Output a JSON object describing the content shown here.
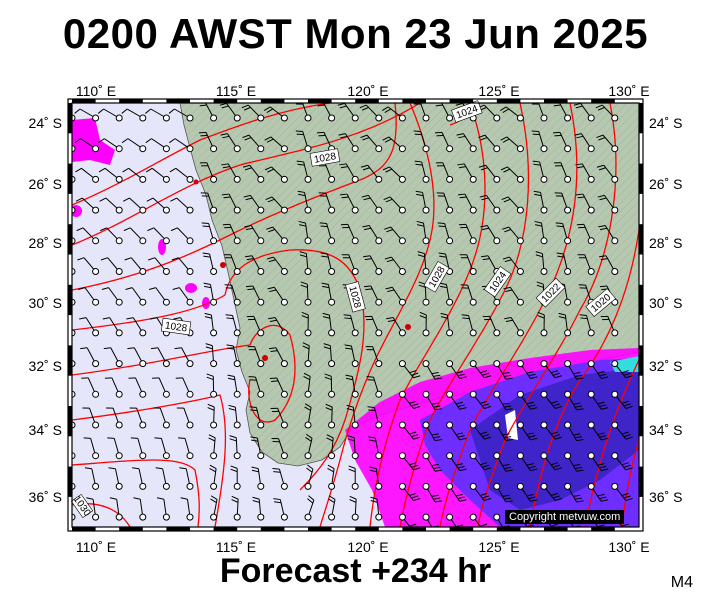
{
  "title": "0200 AWST Mon 23 Jun 2025",
  "footer": "Forecast +234 hr",
  "model_label": "M4",
  "copyright": "Copyright metvuw.com",
  "x_axis": {
    "ticks": [
      "110˚ E",
      "115˚ E",
      "120˚ E",
      "125˚ E",
      "130˚ E"
    ]
  },
  "y_axis": {
    "ticks": [
      "24˚ S",
      "26˚ S",
      "28˚ S",
      "30˚ S",
      "32˚ S",
      "34˚ S",
      "36˚ S"
    ]
  },
  "isobar_labels": [
    "1024",
    "1028",
    "1028",
    "1028",
    "1024",
    "1022",
    "1020",
    "1028",
    "1030"
  ],
  "colors": {
    "ocean": "#e6e6fa",
    "land": "#b6c9b0",
    "isobar": "#ff0000",
    "rain_magenta": "#ff00ff",
    "rain_blue": "#5533ff",
    "rain_cyan": "#33dddd",
    "frame": "#000000"
  }
}
